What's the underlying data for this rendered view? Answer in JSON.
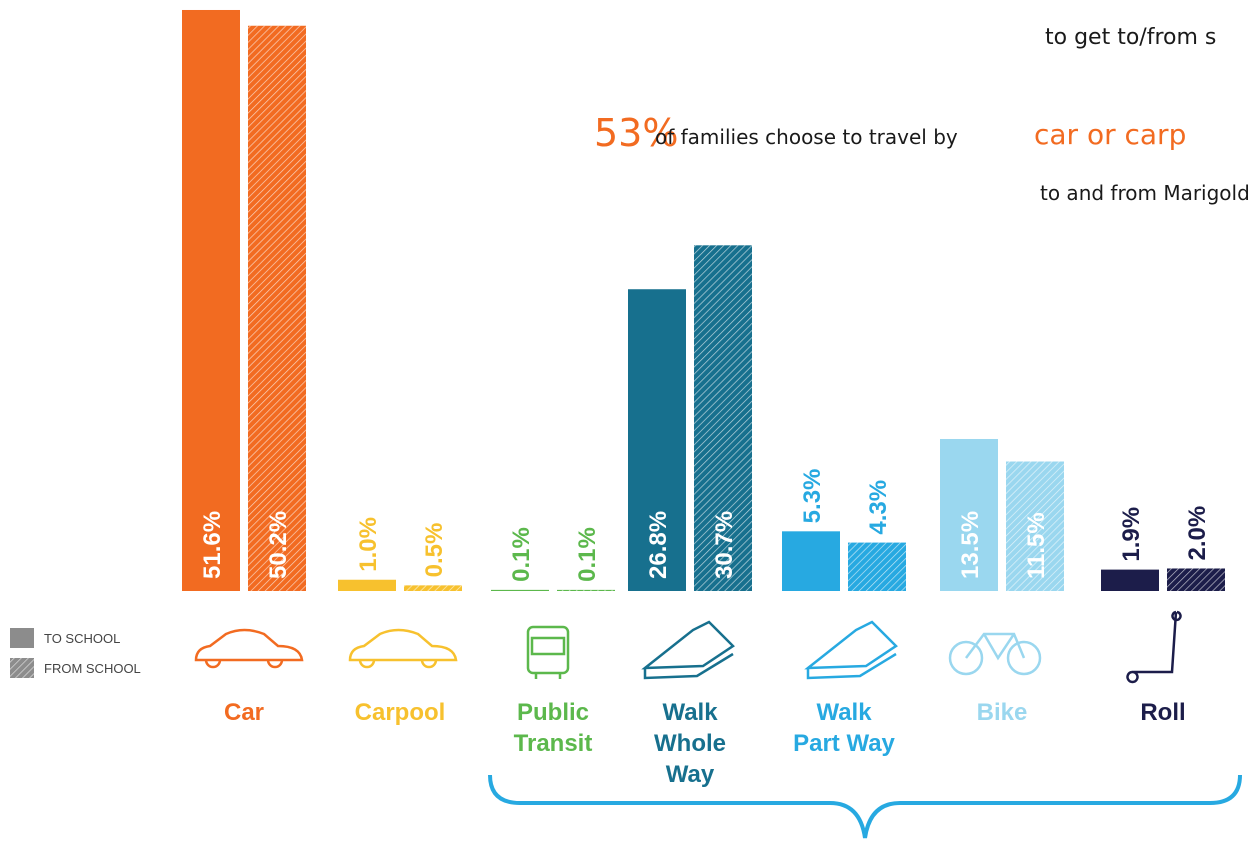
{
  "chart_data": {
    "type": "bar",
    "header": {
      "line1": "to get to/from s",
      "pct": "53%",
      "text": "of families choose to travel by",
      "highlight": "car or carp",
      "line3": "to and from Marigold Eleme"
    },
    "categories": [
      [
        "Car"
      ],
      [
        "Carpool"
      ],
      [
        "Public",
        "Transit"
      ],
      [
        "Walk",
        "Whole",
        "Way"
      ],
      [
        "Walk",
        "Part Way"
      ],
      [
        "Bike"
      ],
      [
        "Roll"
      ]
    ],
    "colors": [
      "#f26b21",
      "#f7c12e",
      "#5cb84c",
      "#17708e",
      "#27a9e1",
      "#9ad7ef",
      "#1c1d4a"
    ],
    "series": [
      {
        "name": "TO SCHOOL",
        "color": "#8c8c8c",
        "values": [
          51.6,
          1.0,
          0.1,
          26.8,
          5.3,
          13.5,
          1.9
        ],
        "value_labels": [
          "51.6%",
          "1.0%",
          "0.1%",
          "26.8%",
          "5.3%",
          "13.5%",
          "1.9%"
        ]
      },
      {
        "name": "FROM SCHOOL",
        "color": "#8c8c8c",
        "hatched": true,
        "values": [
          50.2,
          0.5,
          0.1,
          30.7,
          4.3,
          11.5,
          2.0
        ],
        "value_labels": [
          "50.2%",
          "0.5%",
          "0.1%",
          "30.7%",
          "4.3%",
          "11.5%",
          "2.0%"
        ]
      }
    ]
  }
}
